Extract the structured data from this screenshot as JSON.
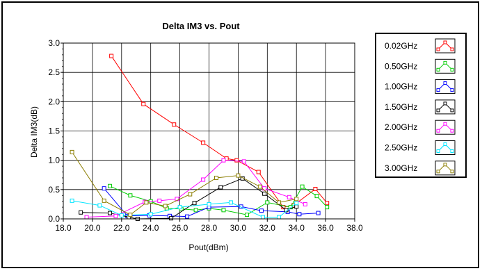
{
  "chart_data": {
    "type": "line",
    "title": "Delta IM3 vs. Pout",
    "xlabel": "Pout(dBm)",
    "ylabel": "Delta IM3(dB)",
    "xlim": [
      18.0,
      38.0
    ],
    "ylim": [
      0.0,
      3.0
    ],
    "xticks": [
      18.0,
      20.0,
      22.0,
      24.0,
      26.0,
      28.0,
      30.0,
      32.0,
      34.0,
      36.0,
      38.0
    ],
    "xtick_labels": [
      "18.0",
      "20.0",
      "22.0",
      "24.0",
      "26.0",
      "28.0",
      "30.0",
      "32.0",
      "34.0",
      "36.0",
      "38.0"
    ],
    "yticks": [
      0.0,
      0.5,
      1.0,
      1.5,
      2.0,
      2.5,
      3.0
    ],
    "ytick_labels": [
      "0.0",
      "0.5",
      "1.0",
      "1.5",
      "2.0",
      "2.5",
      "3.0"
    ],
    "grid": true,
    "legend_position": "right",
    "series": [
      {
        "name": "0.02GHz",
        "color": "#ff0000",
        "x": [
          21.3,
          23.5,
          25.6,
          27.6,
          29.2,
          29.9,
          31.4,
          33.1,
          33.8,
          35.3,
          36.1
        ],
        "y": [
          2.78,
          1.96,
          1.61,
          1.3,
          1.03,
          1.0,
          0.8,
          0.2,
          0.23,
          0.51,
          0.27
        ]
      },
      {
        "name": "0.50GHz",
        "color": "#00cc00",
        "x": [
          21.2,
          22.6,
          24.0,
          25.1,
          26.1,
          27.1,
          28.0,
          29.0,
          30.6,
          32.0,
          33.6,
          34.4,
          35.4,
          36.1
        ],
        "y": [
          0.56,
          0.4,
          0.3,
          0.18,
          0.17,
          0.15,
          0.18,
          0.15,
          0.07,
          0.28,
          0.2,
          0.55,
          0.39,
          0.2
        ]
      },
      {
        "name": "1.00GHz",
        "color": "#0000ff",
        "x": [
          20.8,
          22.4,
          23.9,
          25.3,
          26.5,
          28.0,
          30.2,
          31.6,
          33.4,
          34.2,
          35.5
        ],
        "y": [
          0.52,
          0.05,
          0.06,
          0.05,
          0.04,
          0.2,
          0.21,
          0.14,
          0.12,
          0.08,
          0.1
        ]
      },
      {
        "name": "1.50GHz",
        "color": "#000000",
        "x": [
          19.2,
          21.2,
          22.5,
          23.1,
          25.4,
          27.0,
          28.8,
          30.3,
          31.8,
          33.3,
          34.0
        ],
        "y": [
          0.11,
          0.1,
          0.03,
          0.0,
          0.01,
          0.27,
          0.54,
          0.69,
          0.43,
          0.15,
          0.21
        ]
      },
      {
        "name": "2.00GHz",
        "color": "#ff00ff",
        "x": [
          19.6,
          21.6,
          23.6,
          24.6,
          25.8,
          27.6,
          29.0,
          30.4,
          31.8,
          33.5,
          34.6
        ],
        "y": [
          0.03,
          0.05,
          0.29,
          0.31,
          0.34,
          0.67,
          1.0,
          0.98,
          0.52,
          0.37,
          0.25
        ]
      },
      {
        "name": "2.50GHz",
        "color": "#00e5ff",
        "x": [
          18.6,
          20.5,
          22.0,
          24.0,
          26.0,
          28.0,
          29.5,
          31.7,
          32.8,
          34.0
        ],
        "y": [
          0.31,
          0.23,
          0.06,
          0.08,
          0.2,
          0.25,
          0.28,
          0.03,
          0.03,
          0.27
        ]
      },
      {
        "name": "3.00GHz",
        "color": "#8b7d00",
        "x": [
          18.6,
          20.8,
          22.6,
          23.7,
          25.0,
          26.7,
          28.5,
          30.0,
          31.5,
          32.8,
          34.0
        ],
        "y": [
          1.14,
          0.31,
          0.07,
          0.28,
          0.22,
          0.42,
          0.7,
          0.74,
          0.55,
          0.28,
          0.34
        ]
      }
    ]
  }
}
